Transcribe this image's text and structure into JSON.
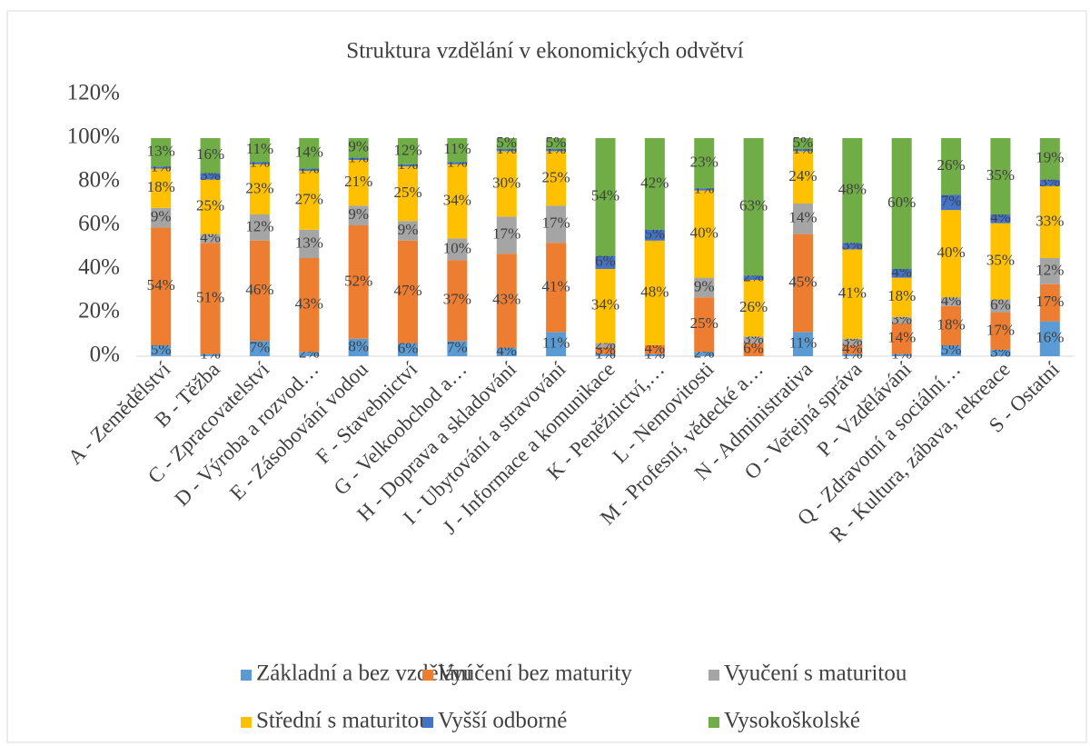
{
  "chart_data": {
    "type": "stacked-bar",
    "title": "Struktura vzdělání v ekonomických odvětví",
    "categories": [
      "A - Zemědělství",
      "B - Těžba",
      "C - Zpracovatelství",
      "D - Výroba a rozvod…",
      "E - Zásobování vodou",
      "F - Stavebnictví",
      "G - Velkoobchod a…",
      "H - Doprava a skladování",
      "I - Ubytování a stravování",
      "J - Informace a komunikace",
      "K - Peněžnictví,…",
      "L - Nemovitosti",
      "M - Profesní, vědecké a…",
      "N - Administrativa",
      "O - Veřejná správa",
      "P - Vzdělávání",
      "Q - Zdravotní a sociální…",
      "R - Kultura, zábava, rekreace",
      "S - Ostatní"
    ],
    "series": [
      {
        "name": "Základní a bez vzdělání",
        "color": "#5b9bd5",
        "values": [
          5,
          1,
          7,
          2,
          8,
          6,
          7,
          4,
          11,
          1,
          1,
          2,
          null,
          11,
          1,
          1,
          5,
          3,
          16
        ],
        "value_labels": [
          "5%",
          "1%",
          "7%",
          "2%",
          "8%",
          "6%",
          "7%",
          "4%",
          "11%",
          "1%",
          "1%",
          "2%",
          null,
          "11%",
          "1%",
          "1%",
          "5%",
          "3%",
          "16%"
        ]
      },
      {
        "name": "Vyučení bez maturity",
        "color": "#ed7d31",
        "values": [
          54,
          51,
          46,
          43,
          52,
          47,
          37,
          43,
          41,
          3,
          4,
          25,
          6,
          45,
          4,
          14,
          18,
          17,
          17
        ],
        "value_labels": [
          "54%",
          "51%",
          "46%",
          "43%",
          "52%",
          "47%",
          "37%",
          "43%",
          "41%",
          "3%",
          "4%",
          "25%",
          "6%",
          "45%",
          "4%",
          "14%",
          "18%",
          "17%",
          "17%"
        ]
      },
      {
        "name": "Vyučení s maturitou",
        "color": "#a5a5a5",
        "values": [
          9,
          4,
          12,
          13,
          9,
          9,
          10,
          17,
          17,
          2,
          null,
          9,
          3,
          14,
          3,
          3,
          4,
          6,
          12
        ],
        "value_labels": [
          "9%",
          "4%",
          "12%",
          "13%",
          "9%",
          "9%",
          "10%",
          "17%",
          "17%",
          "2%",
          null,
          "9%",
          "3%",
          "14%",
          "3%",
          "3%",
          "4%",
          "6%",
          "12%"
        ]
      },
      {
        "name": "Střední s maturitou",
        "color": "#ffc000",
        "values": [
          18,
          25,
          23,
          27,
          21,
          25,
          34,
          30,
          25,
          34,
          48,
          40,
          26,
          24,
          41,
          18,
          40,
          35,
          33
        ],
        "value_labels": [
          "18%",
          "25%",
          "23%",
          "27%",
          "21%",
          "25%",
          "34%",
          "30%",
          "25%",
          "34%",
          "48%",
          "40%",
          "26%",
          "24%",
          "41%",
          "18%",
          "40%",
          "35%",
          "33%"
        ]
      },
      {
        "name": "Vyšší odborné",
        "color": "#4472c4",
        "values": [
          1,
          3,
          1,
          1,
          1,
          1,
          1,
          1,
          1,
          6,
          5,
          1,
          2,
          1,
          3,
          4,
          7,
          4,
          3
        ],
        "value_labels": [
          "1%",
          "3%",
          "1%",
          "1%",
          "1%",
          "1%",
          "1%",
          "1%",
          "1%",
          "6%",
          "5%",
          "1%",
          "2%",
          "1%",
          "3%",
          "4%",
          "7%",
          "4%",
          "3%"
        ]
      },
      {
        "name": "Vysokoškolské",
        "color": "#70ad47",
        "values": [
          13,
          16,
          11,
          14,
          9,
          12,
          11,
          5,
          5,
          54,
          42,
          23,
          63,
          5,
          48,
          60,
          26,
          35,
          19
        ],
        "value_labels": [
          "13%",
          "16%",
          "11%",
          "14%",
          "9%",
          "12%",
          "11%",
          "5%",
          "5%",
          "54%",
          "42%",
          "23%",
          "63%",
          "5%",
          "48%",
          "60%",
          "26%",
          "35%",
          "19%"
        ]
      }
    ],
    "ylim": [
      0,
      120
    ],
    "yticks": [
      {
        "value": 0,
        "label": "0%"
      },
      {
        "value": 20,
        "label": "20%"
      },
      {
        "value": 40,
        "label": "40%"
      },
      {
        "value": 60,
        "label": "60%"
      },
      {
        "value": 80,
        "label": "80%"
      },
      {
        "value": 100,
        "label": "100%"
      },
      {
        "value": 120,
        "label": "120%"
      }
    ]
  }
}
